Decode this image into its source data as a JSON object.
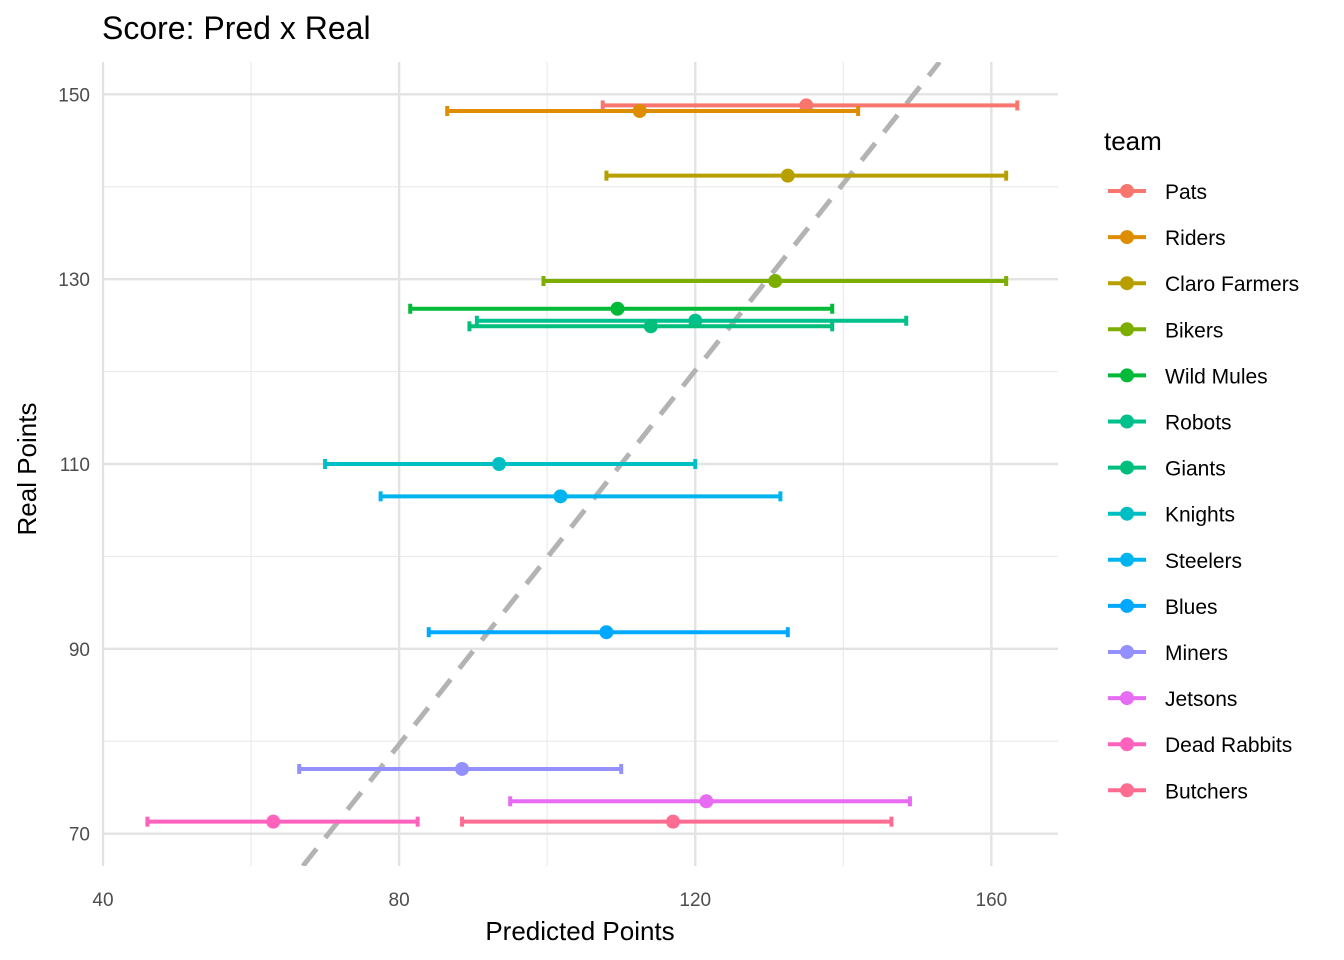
{
  "chart_data": {
    "type": "scatter",
    "title": "Score: Pred x Real",
    "xlabel": "Predicted Points",
    "ylabel": "Real Points",
    "xlim": [
      40,
      169
    ],
    "ylim": [
      66.5,
      153.5
    ],
    "x_ticks": [
      40,
      80,
      120,
      160
    ],
    "y_ticks": [
      70,
      90,
      110,
      130,
      150
    ],
    "x_minor_ticks": [
      60,
      100,
      140
    ],
    "y_minor_ticks": [
      80,
      100,
      120,
      140
    ],
    "grid": true,
    "legend_title": "team",
    "legend_position": "right",
    "reference_line": {
      "style": "dashed",
      "color": "#b3b3b3",
      "points": [
        [
          67,
          66.5
        ],
        [
          153,
          153.5
        ]
      ]
    },
    "series": [
      {
        "name": "Pats",
        "color": "#F8766D",
        "pred": 135,
        "real": 148.8,
        "low": 107.5,
        "high": 163.5
      },
      {
        "name": "Riders",
        "color": "#DE8C00",
        "pred": 112.5,
        "real": 148.2,
        "low": 86.5,
        "high": 142
      },
      {
        "name": "Claro Farmers",
        "color": "#B79F00",
        "pred": 132.5,
        "real": 141.2,
        "low": 108,
        "high": 162
      },
      {
        "name": "Bikers",
        "color": "#7CAE00",
        "pred": 130.8,
        "real": 129.8,
        "low": 99.5,
        "high": 162
      },
      {
        "name": "Wild Mules",
        "color": "#00BA38",
        "pred": 109.5,
        "real": 126.8,
        "low": 81.5,
        "high": 138.5
      },
      {
        "name": "Robots",
        "color": "#00C08B",
        "pred": 120,
        "real": 125.5,
        "low": 90.5,
        "high": 148.5
      },
      {
        "name": "Giants",
        "color": "#00BF7D",
        "pred": 114,
        "real": 124.9,
        "low": 89.5,
        "high": 138.5
      },
      {
        "name": "Knights",
        "color": "#00BFC4",
        "pred": 93.5,
        "real": 110,
        "low": 70,
        "high": 120
      },
      {
        "name": "Steelers",
        "color": "#00B4F0",
        "pred": 101.8,
        "real": 106.5,
        "low": 77.5,
        "high": 131.5
      },
      {
        "name": "Blues",
        "color": "#00A9FF",
        "pred": 108,
        "real": 91.8,
        "low": 84,
        "high": 132.5
      },
      {
        "name": "Miners",
        "color": "#9590FF",
        "pred": 88.5,
        "real": 77,
        "low": 66.5,
        "high": 110
      },
      {
        "name": "Jetsons",
        "color": "#E76BF3",
        "pred": 121.5,
        "real": 73.5,
        "low": 95,
        "high": 149
      },
      {
        "name": "Dead Rabbits",
        "color": "#FF62BC",
        "pred": 63,
        "real": 71.3,
        "low": 46,
        "high": 82.5
      },
      {
        "name": "Butchers",
        "color": "#FF6C91",
        "pred": 117,
        "real": 71.3,
        "low": 88.5,
        "high": 146.5
      }
    ]
  }
}
